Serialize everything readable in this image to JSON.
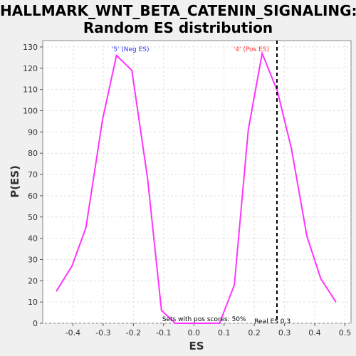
{
  "colors": {
    "page_bg": "#f0f0f0",
    "plot_bg": "#ffffff",
    "series": "#ff33ff",
    "neg_label": "#3333ff",
    "pos_label": "#ff3333",
    "real_es_line": "#000000"
  },
  "chart_data": {
    "type": "line",
    "title": "HALLMARK_WNT_BETA_CATENIN_SIGNALING:",
    "subtitle": "Random ES distribution",
    "xlabel": "ES",
    "ylabel": "P(ES)",
    "xlim": [
      -0.5,
      0.52
    ],
    "ylim": [
      0,
      133
    ],
    "xticks": [
      -0.4,
      -0.3,
      -0.2,
      -0.1,
      0.0,
      0.1,
      0.2,
      0.3,
      0.4,
      0.5
    ],
    "xtick_labels": [
      "-0.4",
      "-0.3",
      "-0.2",
      "-0.1",
      "0.0",
      "0.1",
      "0.2",
      "0.3",
      "0.4",
      "0.5"
    ],
    "yticks": [
      0,
      10,
      20,
      30,
      40,
      50,
      60,
      70,
      80,
      90,
      100,
      110,
      120,
      130
    ],
    "ytick_labels": [
      "0",
      "10",
      "20",
      "30",
      "40",
      "50",
      "60",
      "70",
      "80",
      "90",
      "100",
      "110",
      "120",
      "130"
    ],
    "grid": true,
    "series": [
      {
        "x": [
          -0.455,
          -0.403,
          -0.357,
          -0.302,
          -0.256,
          -0.205,
          -0.153,
          -0.107,
          -0.061,
          0.085,
          0.134,
          0.18,
          0.226,
          0.277,
          0.323,
          0.374,
          0.42,
          0.47
        ],
        "y": [
          15,
          27,
          45,
          96,
          126,
          119,
          68,
          6,
          0,
          0,
          18,
          91,
          127,
          109,
          82,
          41,
          21,
          10
        ]
      }
    ],
    "annotations": {
      "neg_label": "'5' (Neg ES)",
      "neg_label_at": [
        -0.21,
        128
      ],
      "pos_label": "'4' (Pos ES)",
      "pos_label_at": [
        0.19,
        128
      ],
      "pos_sets": "Sets with pos scores: 50%",
      "pos_sets_at": [
        0.034,
        1
      ],
      "real_es_label": "Real ES 0.3",
      "real_es_label_at": [
        0.26,
        0
      ],
      "real_es": 0.275
    }
  }
}
